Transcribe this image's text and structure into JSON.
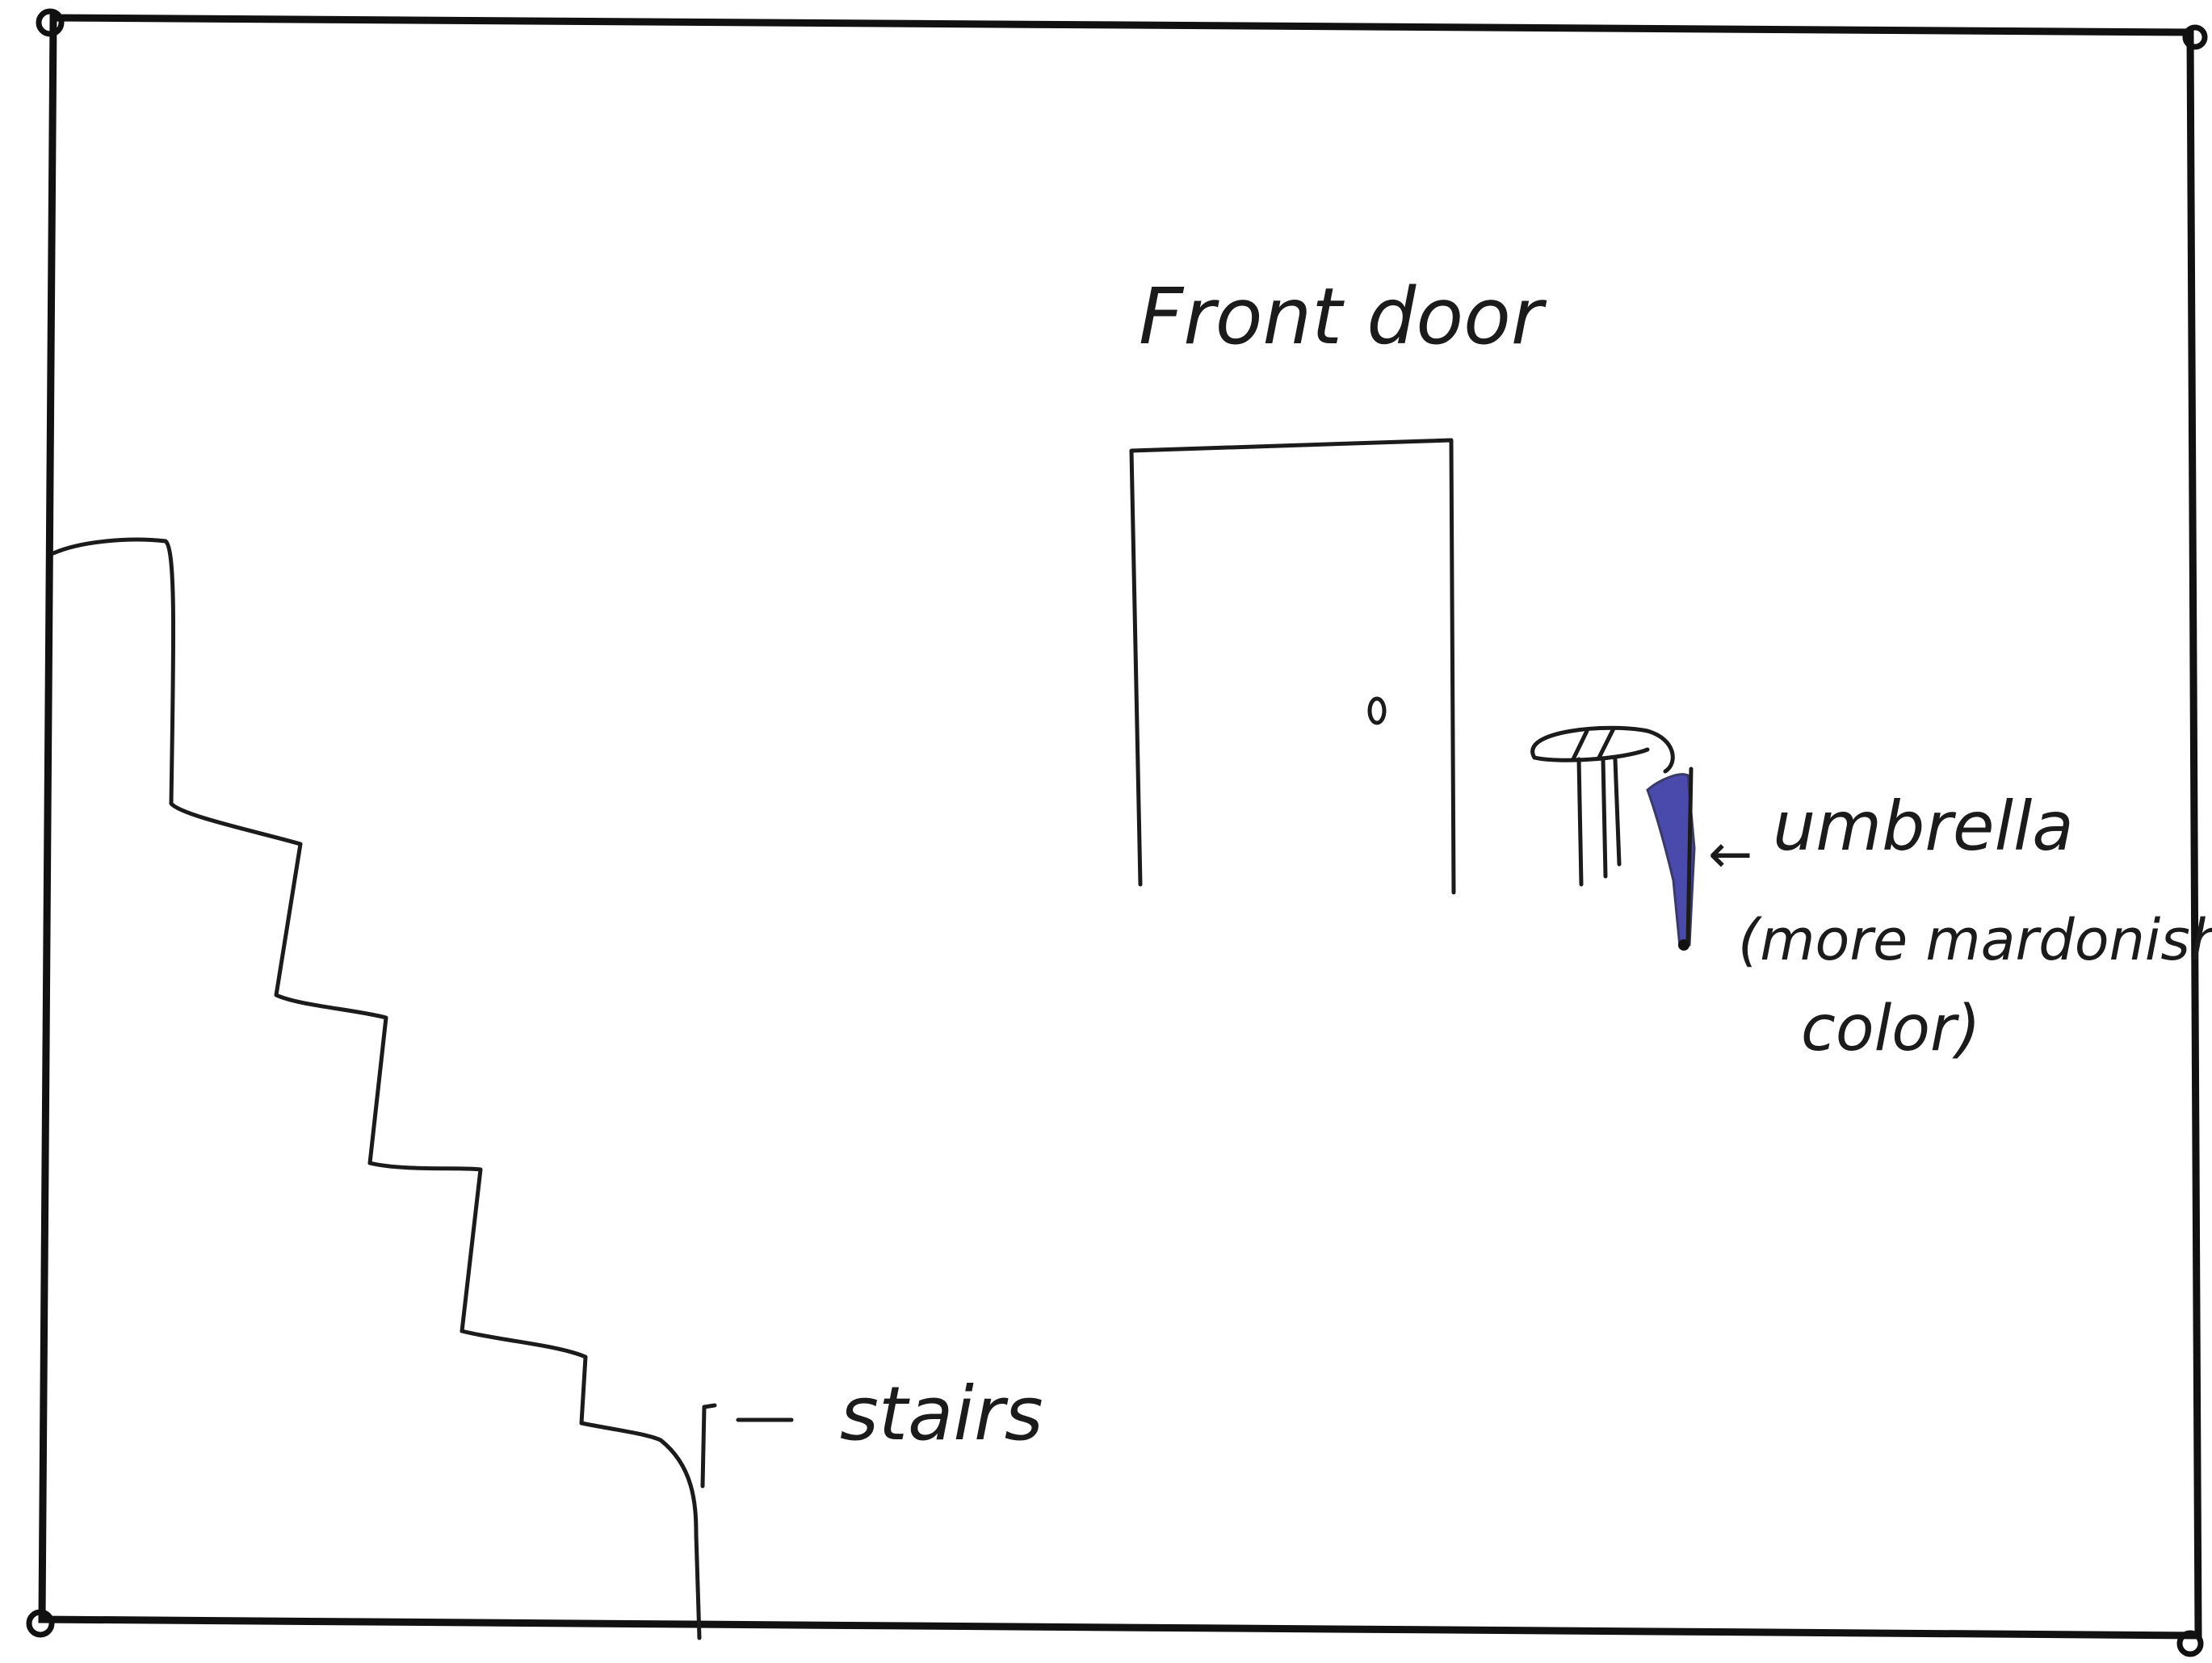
{
  "labels": {
    "front_door": "Front door",
    "stairs": "stairs",
    "umbrella_arrow": "←",
    "umbrella": "umbrella",
    "umbrella_note_line1": "(more mardonish",
    "umbrella_note_line2": "color)"
  },
  "colors": {
    "ink": "#1b1b1b",
    "umbrella_fill": "#3b3aa6",
    "paper": "#ffffff"
  },
  "icons": {
    "stairs_pointer": "corner-bracket-arrow",
    "door_knob": "small-circle",
    "umbrella_stand": "hand-drawn-umbrella-stand"
  }
}
